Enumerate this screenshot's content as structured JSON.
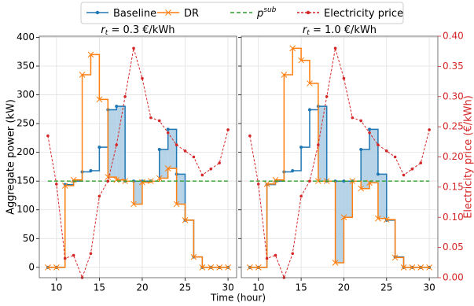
{
  "chart_data": [
    {
      "type": "step",
      "title": {
        "var": "r",
        "sub": "t",
        "text": " = 0.3 €/kWh"
      },
      "xlabel": "Time (hour)",
      "ylabel": "Aggregate power (kW)",
      "x": [
        9,
        10,
        11,
        12,
        13,
        14,
        15,
        16,
        17,
        18,
        19,
        20,
        21,
        22,
        23,
        24,
        25,
        26,
        27,
        28,
        29,
        30
      ],
      "xlim": [
        8,
        31
      ],
      "xticks": [
        10,
        15,
        20,
        25,
        30
      ],
      "ylim": [
        -18,
        402
      ],
      "yticks": [
        0,
        50,
        100,
        150,
        200,
        250,
        300,
        350,
        400
      ],
      "y2lim": [
        0,
        0.4
      ],
      "grid": true,
      "shade_color": "#a9cbe3",
      "series": [
        {
          "name": "Baseline",
          "color": "#1f77b4",
          "marker": "o",
          "drawstyle": "steps-post",
          "linestyle": "solid",
          "values": [
            0,
            0,
            144,
            150,
            166,
            168,
            209,
            274,
            280,
            150,
            150,
            150,
            150,
            205,
            240,
            162,
            82,
            18,
            0,
            0,
            0,
            0
          ]
        },
        {
          "name": "DR",
          "color": "#ff7f0e",
          "marker": "x",
          "drawstyle": "steps-post",
          "linestyle": "solid",
          "values": [
            0,
            0,
            142,
            152,
            335,
            370,
            292,
            157,
            152,
            150,
            110,
            148,
            150,
            155,
            172,
            110,
            82,
            18,
            0,
            0,
            0,
            0
          ]
        },
        {
          "name": "p",
          "name_sup": "sub",
          "color": "#2ca02c",
          "linestyle": "dashed",
          "value": 150
        },
        {
          "name": "Electricity price",
          "color": "#d62728",
          "marker": "o",
          "linestyle": "dashed",
          "axis": "y2",
          "values": [
            0.235,
            0.155,
            0.032,
            0.037,
            0.0,
            0.04,
            0.135,
            0.16,
            0.22,
            0.3,
            0.38,
            0.33,
            0.265,
            0.26,
            0.24,
            0.22,
            0.21,
            0.2,
            0.17,
            0.18,
            0.19,
            0.245
          ]
        }
      ]
    },
    {
      "type": "step",
      "title": {
        "var": "r",
        "sub": "t",
        "text": " = 1.0 €/kWh"
      },
      "y2label": "Electricity price (€/kWh)",
      "x": [
        9,
        10,
        11,
        12,
        13,
        14,
        15,
        16,
        17,
        18,
        19,
        20,
        21,
        22,
        23,
        24,
        25,
        26,
        27,
        28,
        29,
        30
      ],
      "xlim": [
        8,
        31
      ],
      "xticks": [
        10,
        15,
        20,
        25,
        30
      ],
      "ylim": [
        -18,
        402
      ],
      "yticks": [
        0,
        50,
        100,
        150,
        200,
        250,
        300,
        350,
        400
      ],
      "y2lim": [
        0,
        0.4
      ],
      "y2ticks": [
        {
          "value": 0,
          "label": "0.00"
        },
        {
          "value": 0.05,
          "label": "0.05"
        },
        {
          "value": 0.1,
          "label": "0.10"
        },
        {
          "value": 0.15,
          "label": "0.15"
        },
        {
          "value": 0.2,
          "label": "0.20"
        },
        {
          "value": 0.25,
          "label": "0.25"
        },
        {
          "value": 0.3,
          "label": "0.30"
        },
        {
          "value": 0.35,
          "label": "0.35"
        },
        {
          "value": 0.4,
          "label": "0.40"
        }
      ],
      "grid": true,
      "shade_color": "#a9cbe3",
      "series": [
        {
          "name": "Baseline",
          "color": "#1f77b4",
          "marker": "o",
          "drawstyle": "steps-post",
          "linestyle": "solid",
          "values": [
            0,
            0,
            144,
            150,
            166,
            168,
            209,
            274,
            280,
            150,
            150,
            150,
            150,
            205,
            240,
            162,
            82,
            18,
            0,
            0,
            0,
            0
          ]
        },
        {
          "name": "DR",
          "color": "#ff7f0e",
          "marker": "x",
          "drawstyle": "steps-post",
          "linestyle": "solid",
          "values": [
            0,
            0,
            145,
            152,
            335,
            381,
            360,
            320,
            150,
            150,
            8,
            87,
            150,
            137,
            147,
            85,
            83,
            17,
            0,
            0,
            0,
            0
          ]
        },
        {
          "name": "p",
          "name_sup": "sub",
          "color": "#2ca02c",
          "linestyle": "dashed",
          "value": 150
        },
        {
          "name": "Electricity price",
          "color": "#d62728",
          "marker": "o",
          "linestyle": "dashed",
          "axis": "y2",
          "values": [
            0.235,
            0.155,
            0.032,
            0.037,
            0.0,
            0.04,
            0.135,
            0.16,
            0.22,
            0.3,
            0.38,
            0.33,
            0.265,
            0.26,
            0.24,
            0.22,
            0.21,
            0.2,
            0.17,
            0.18,
            0.19,
            0.245
          ]
        }
      ]
    }
  ]
}
